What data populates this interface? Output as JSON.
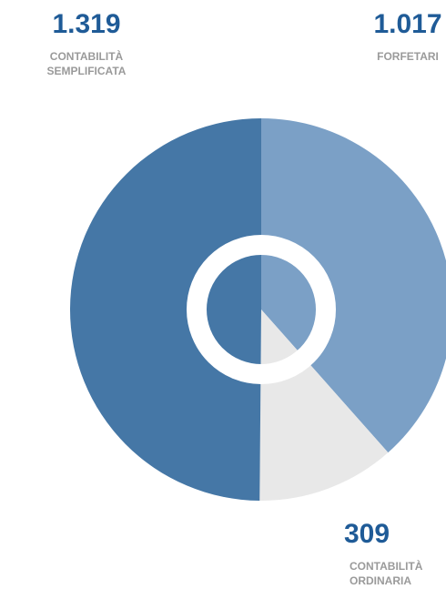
{
  "chart_data": {
    "type": "pie",
    "categories": [
      "CONTABILITÀ SEMPLIFICATA",
      "FORFETARI",
      "CONTABILITÀ ORDINARIA"
    ],
    "values": [
      1319,
      1017,
      309
    ],
    "value_labels": [
      "1.319",
      "1.017",
      "309"
    ],
    "colors": [
      "#4577a6",
      "#7ba0c6",
      "#e8e8e8"
    ]
  }
}
